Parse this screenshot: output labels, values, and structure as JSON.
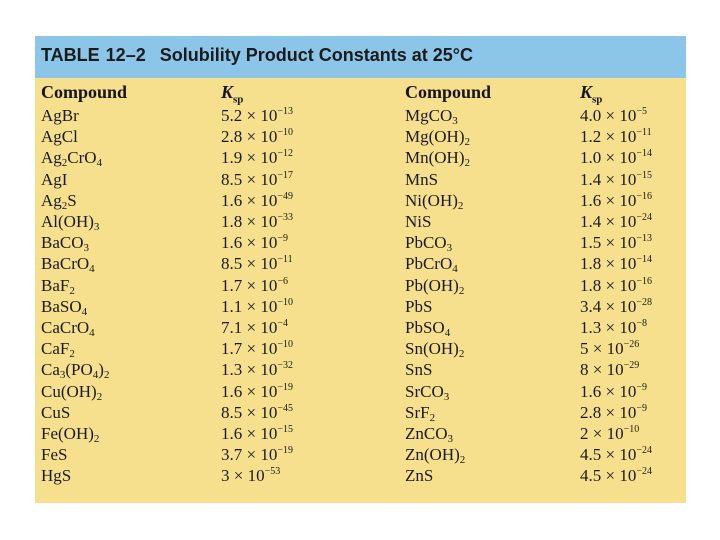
{
  "table": {
    "label": "TABLE",
    "number": "12–2",
    "title": "Solubility Product Constants at 25°C",
    "compound_header": "Compound",
    "ksp_header_main": "K",
    "ksp_header_sub": "sp"
  },
  "left_column": [
    {
      "parts": [
        [
          "AgBr",
          ""
        ]
      ],
      "coef": "5.2",
      "exp": "−13"
    },
    {
      "parts": [
        [
          "AgCl",
          ""
        ]
      ],
      "coef": "2.8",
      "exp": "−10"
    },
    {
      "parts": [
        [
          "Ag",
          "2"
        ],
        [
          "CrO",
          "4"
        ]
      ],
      "coef": "1.9",
      "exp": "−12"
    },
    {
      "parts": [
        [
          "AgI",
          ""
        ]
      ],
      "coef": "8.5",
      "exp": "−17"
    },
    {
      "parts": [
        [
          "Ag",
          "2"
        ],
        [
          "S",
          ""
        ]
      ],
      "coef": "1.6",
      "exp": "−49"
    },
    {
      "parts": [
        [
          "Al(OH)",
          "3"
        ]
      ],
      "coef": "1.8",
      "exp": "−33"
    },
    {
      "parts": [
        [
          "BaCO",
          "3"
        ]
      ],
      "coef": "1.6",
      "exp": "−9"
    },
    {
      "parts": [
        [
          "BaCrO",
          "4"
        ]
      ],
      "coef": "8.5",
      "exp": "−11"
    },
    {
      "parts": [
        [
          "BaF",
          "2"
        ]
      ],
      "coef": "1.7",
      "exp": "−6"
    },
    {
      "parts": [
        [
          "BaSO",
          "4"
        ]
      ],
      "coef": "1.1",
      "exp": "−10"
    },
    {
      "parts": [
        [
          "CaCrO",
          "4"
        ]
      ],
      "coef": "7.1",
      "exp": "−4"
    },
    {
      "parts": [
        [
          "CaF",
          "2"
        ]
      ],
      "coef": "1.7",
      "exp": "−10"
    },
    {
      "parts": [
        [
          "Ca",
          "3"
        ],
        [
          "(PO",
          "4"
        ],
        [
          ")",
          "2"
        ]
      ],
      "coef": "1.3",
      "exp": "−32"
    },
    {
      "parts": [
        [
          "Cu(OH)",
          "2"
        ]
      ],
      "coef": "1.6",
      "exp": "−19"
    },
    {
      "parts": [
        [
          "CuS",
          ""
        ]
      ],
      "coef": "8.5",
      "exp": "−45"
    },
    {
      "parts": [
        [
          "Fe(OH)",
          "2"
        ]
      ],
      "coef": "1.6",
      "exp": "−15"
    },
    {
      "parts": [
        [
          "FeS",
          ""
        ]
      ],
      "coef": "3.7",
      "exp": "−19"
    },
    {
      "parts": [
        [
          "HgS",
          ""
        ]
      ],
      "coef": "3",
      "exp": "−53"
    }
  ],
  "right_column": [
    {
      "parts": [
        [
          "MgCO",
          "3"
        ]
      ],
      "coef": "4.0",
      "exp": "−5"
    },
    {
      "parts": [
        [
          "Mg(OH)",
          "2"
        ]
      ],
      "coef": "1.2",
      "exp": "−11"
    },
    {
      "parts": [
        [
          "Mn(OH)",
          "2"
        ]
      ],
      "coef": "1.0",
      "exp": "−14"
    },
    {
      "parts": [
        [
          "MnS",
          ""
        ]
      ],
      "coef": "1.4",
      "exp": "−15"
    },
    {
      "parts": [
        [
          "Ni(OH)",
          "2"
        ]
      ],
      "coef": "1.6",
      "exp": "−16"
    },
    {
      "parts": [
        [
          "NiS",
          ""
        ]
      ],
      "coef": "1.4",
      "exp": "−24"
    },
    {
      "parts": [
        [
          "PbCO",
          "3"
        ]
      ],
      "coef": "1.5",
      "exp": "−13"
    },
    {
      "parts": [
        [
          "PbCrO",
          "4"
        ]
      ],
      "coef": "1.8",
      "exp": "−14"
    },
    {
      "parts": [
        [
          "Pb(OH)",
          "2"
        ]
      ],
      "coef": "1.8",
      "exp": "−16"
    },
    {
      "parts": [
        [
          "PbS",
          ""
        ]
      ],
      "coef": "3.4",
      "exp": "−28"
    },
    {
      "parts": [
        [
          "PbSO",
          "4"
        ]
      ],
      "coef": "1.3",
      "exp": "−8"
    },
    {
      "parts": [
        [
          "Sn(OH)",
          "2"
        ]
      ],
      "coef": "5",
      "exp": "−26"
    },
    {
      "parts": [
        [
          "SnS",
          ""
        ]
      ],
      "coef": "8",
      "exp": "−29"
    },
    {
      "parts": [
        [
          "SrCO",
          "3"
        ]
      ],
      "coef": "1.6",
      "exp": "−9"
    },
    {
      "parts": [
        [
          "SrF",
          "2"
        ]
      ],
      "coef": "2.8",
      "exp": "−9"
    },
    {
      "parts": [
        [
          "ZnCO",
          "3"
        ]
      ],
      "coef": "2",
      "exp": "−10"
    },
    {
      "parts": [
        [
          "Zn(OH)",
          "2"
        ]
      ],
      "coef": "4.5",
      "exp": "−24"
    },
    {
      "parts": [
        [
          "ZnS",
          ""
        ]
      ],
      "coef": "4.5",
      "exp": "−24"
    }
  ],
  "colors": {
    "title_bar": "#8bc6e9",
    "table_background": "#f6e08e",
    "text": "#1a1a1a"
  }
}
